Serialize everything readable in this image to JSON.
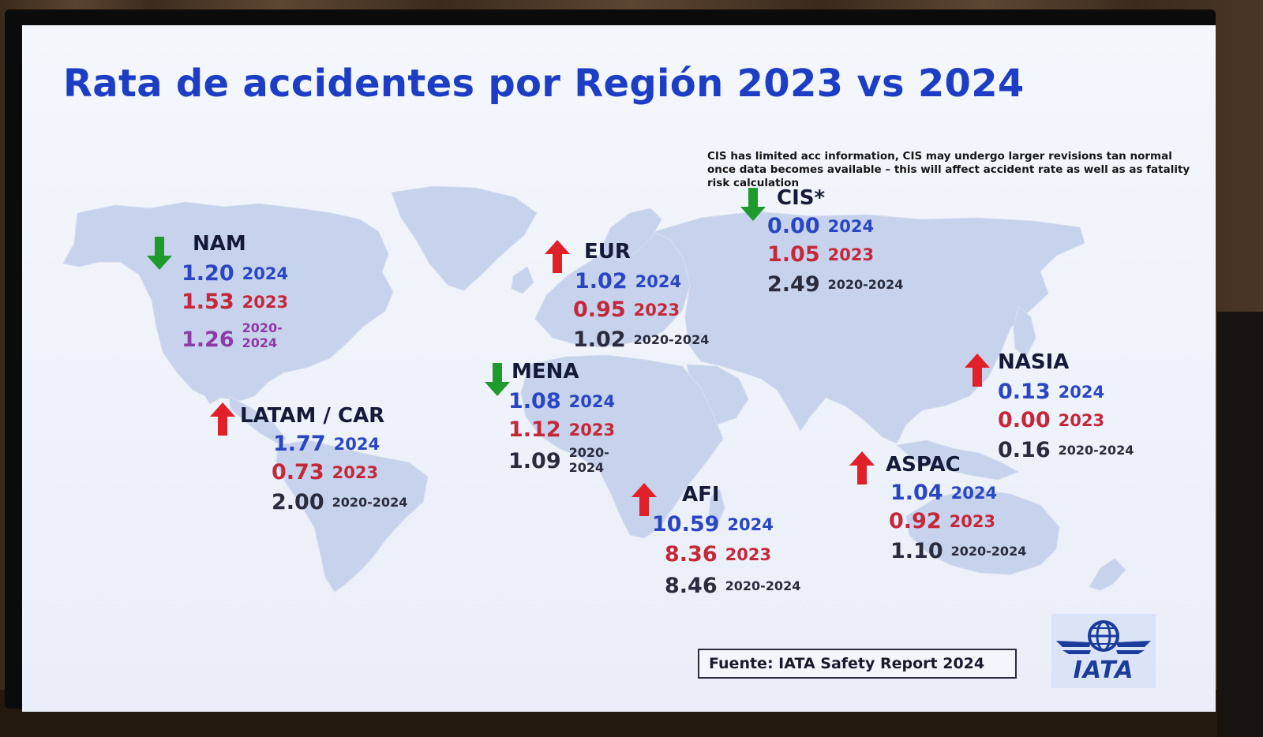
{
  "title": "Rata de accidentes por Región 2023 vs 2024",
  "note": "CIS has limited acc information, CIS may undergo larger revisions tan normal once data  becomes available  –  this will affect accident rate as well as as fatality risk calculation",
  "colors": {
    "y2024": "#2a46c2",
    "y2023": "#c4283a",
    "avg": "#2b2b3e",
    "nam_avg": "#8e3aa8",
    "up_arrow": "#e0212a",
    "down_arrow": "#1f9a2c",
    "title": "#1d3ec4"
  },
  "regions": {
    "nam": {
      "name": "NAM",
      "trend": "down",
      "trend_icon": "down-arrow-icon",
      "v2024": "1.20",
      "y2024": "2024",
      "v2023": "1.53",
      "y2023": "2023",
      "vavg": "1.26",
      "yavg": "2020-2024"
    },
    "latam": {
      "name": "LATAM / CAR",
      "trend": "up",
      "trend_icon": "up-arrow-icon",
      "v2024": "1.77",
      "y2024": "2024",
      "v2023": "0.73",
      "y2023": "2023",
      "vavg": "2.00",
      "yavg": "2020-2024"
    },
    "eur": {
      "name": "EUR",
      "trend": "up",
      "trend_icon": "up-arrow-icon",
      "v2024": "1.02",
      "y2024": "2024",
      "v2023": "0.95",
      "y2023": "2023",
      "vavg": "1.02",
      "yavg": "2020-2024"
    },
    "mena": {
      "name": "MENA",
      "trend": "down",
      "trend_icon": "down-arrow-icon",
      "v2024": "1.08",
      "y2024": "2024",
      "v2023": "1.12",
      "y2023": "2023",
      "vavg": "1.09",
      "yavg": "2020-2024"
    },
    "afi": {
      "name": "AFI",
      "trend": "up",
      "trend_icon": "up-arrow-icon",
      "v2024": "10.59",
      "y2024": "2024",
      "v2023": "8.36",
      "y2023": "2023",
      "vavg": "8.46",
      "yavg": "2020-2024"
    },
    "cis": {
      "name": "CIS*",
      "trend": "down",
      "trend_icon": "down-arrow-icon",
      "v2024": "0.00",
      "y2024": "2024",
      "v2023": "1.05",
      "y2023": "2023",
      "vavg": "2.49",
      "yavg": "2020-2024"
    },
    "nasia": {
      "name": "NASIA",
      "trend": "up",
      "trend_icon": "up-arrow-icon",
      "v2024": "0.13",
      "y2024": "2024",
      "v2023": "0.00",
      "y2023": "2023",
      "vavg": "0.16",
      "yavg": "2020-2024"
    },
    "aspac": {
      "name": "ASPAC",
      "trend": "up",
      "trend_icon": "up-arrow-icon",
      "v2024": "1.04",
      "y2024": "2024",
      "v2023": "0.92",
      "y2023": "2023",
      "vavg": "1.10",
      "yavg": "2020-2024"
    }
  },
  "source": "Fuente: IATA Safety Report 2024",
  "logo": {
    "text": "IATA",
    "icon": "globe-icon"
  }
}
